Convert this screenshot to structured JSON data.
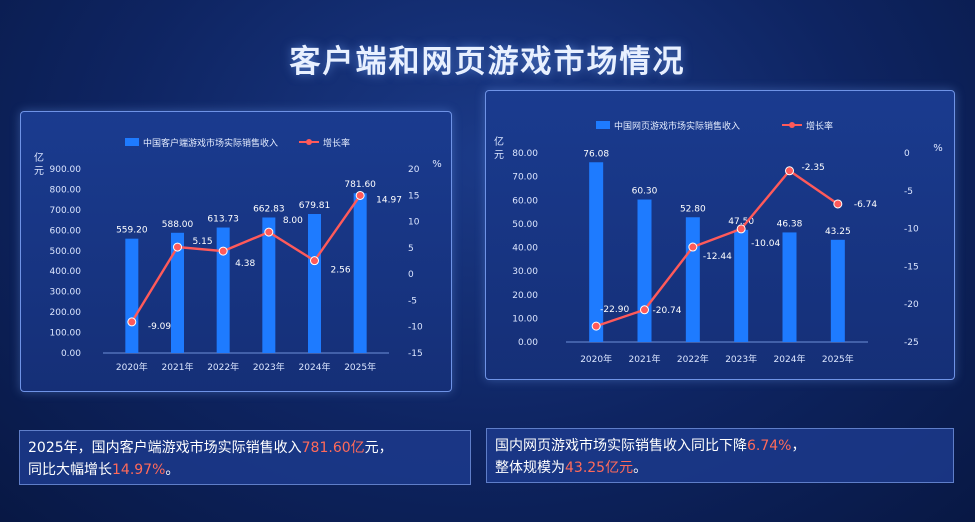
{
  "title": "客户端和网页游戏市场情况",
  "colors": {
    "bar": "#1e7bff",
    "line": "#ff5a5a",
    "highlight": "#ff6a5a"
  },
  "chart_data": [
    {
      "type": "bar",
      "categories": [
        "2020年",
        "2021年",
        "2022年",
        "2023年",
        "2024年",
        "2025年"
      ],
      "series": [
        {
          "name": "中国客户端游戏市场实际销售收入",
          "type": "bar",
          "axis": "left",
          "values": [
            559.2,
            588.0,
            613.73,
            662.83,
            679.81,
            781.6
          ],
          "labels": [
            "559.20",
            "588.00",
            "613.73",
            "662.83",
            "679.81",
            "781.60"
          ]
        },
        {
          "name": "增长率",
          "type": "line",
          "axis": "right",
          "values": [
            -9.09,
            5.15,
            4.38,
            8.0,
            2.56,
            14.97
          ],
          "labels": [
            "-9.09",
            "5.15",
            "4.38",
            "8.00",
            "2.56",
            "14.97"
          ]
        }
      ],
      "ylabel": "亿元",
      "y2label": "%",
      "ylim": [
        0,
        900
      ],
      "y2lim": [
        -15,
        20
      ],
      "yticks": [
        "0.00",
        "100.00",
        "200.00",
        "300.00",
        "400.00",
        "500.00",
        "600.00",
        "700.00",
        "800.00",
        "900.00"
      ],
      "y2ticks": [
        "-15",
        "-10",
        "-5",
        "0",
        "5",
        "10",
        "15",
        "20"
      ],
      "legend": "top"
    },
    {
      "type": "bar",
      "categories": [
        "2020年",
        "2021年",
        "2022年",
        "2023年",
        "2024年",
        "2025年"
      ],
      "series": [
        {
          "name": "中国网页游戏市场实际销售收入",
          "type": "bar",
          "axis": "left",
          "values": [
            76.08,
            60.3,
            52.8,
            47.5,
            46.38,
            43.25
          ],
          "labels": [
            "76.08",
            "60.30",
            "52.80",
            "47.50",
            "46.38",
            "43.25"
          ]
        },
        {
          "name": "增长率",
          "type": "line",
          "axis": "right",
          "values": [
            -22.9,
            -20.74,
            -12.44,
            -10.04,
            -2.35,
            -6.74
          ],
          "labels": [
            "-22.90",
            "-20.74",
            "-12.44",
            "-10.04",
            "-2.35",
            "-6.74"
          ]
        }
      ],
      "ylabel": "亿元",
      "y2label": "%",
      "ylim": [
        0,
        80
      ],
      "y2lim": [
        -25,
        0
      ],
      "yticks": [
        "0.00",
        "10.00",
        "20.00",
        "30.00",
        "40.00",
        "50.00",
        "60.00",
        "70.00",
        "80.00"
      ],
      "y2ticks": [
        "-25",
        "-20",
        "-15",
        "-10",
        "-5",
        "0"
      ],
      "legend": "top"
    }
  ],
  "summary_left": {
    "p1": "2025年，国内客户端游戏市场实际销售收入",
    "v1": "781.60亿",
    "p2": "元，",
    "p3": "同比大幅增长",
    "v2": "14.97%",
    "p4": "。"
  },
  "summary_right": {
    "p1": "国内网页游戏市场实际销售收入同比下降",
    "v1": "6.74%",
    "p2": "，",
    "p3": "整体规模为",
    "v2": "43.25亿元",
    "p4": "。"
  }
}
